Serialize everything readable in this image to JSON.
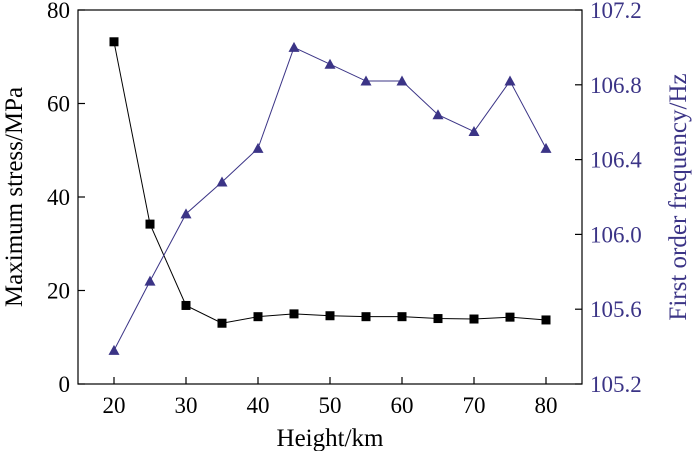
{
  "chart_data": {
    "type": "line",
    "xlabel": "Height/km",
    "x": [
      20,
      25,
      30,
      35,
      40,
      45,
      50,
      55,
      60,
      65,
      70,
      75,
      80
    ],
    "xlim": [
      15,
      85
    ],
    "xticks": [
      20,
      30,
      40,
      50,
      60,
      70,
      80
    ],
    "left_axis": {
      "label": "Maximum stress/MPa",
      "ylim": [
        0,
        80
      ],
      "ticks": [
        0,
        20,
        40,
        60,
        80
      ],
      "color": "#000000"
    },
    "right_axis": {
      "label": "First order frequency/Hz",
      "ylim": [
        105.2,
        107.2
      ],
      "ticks": [
        "105.2",
        "105.6",
        "106.0",
        "106.4",
        "106.8",
        "107.2"
      ],
      "color": "#3b3486"
    },
    "series": [
      {
        "axis": "left",
        "marker": "square",
        "color": "#000000",
        "values": [
          73.2,
          34.2,
          16.8,
          13.0,
          14.4,
          15.0,
          14.6,
          14.4,
          14.4,
          14.0,
          13.9,
          14.3,
          13.7
        ]
      },
      {
        "axis": "right",
        "marker": "triangle",
        "color": "#3b3486",
        "values": [
          105.38,
          105.75,
          106.11,
          106.28,
          106.46,
          107.0,
          106.91,
          106.82,
          106.82,
          106.64,
          106.55,
          106.82,
          106.46
        ]
      }
    ],
    "legend": "none",
    "grid": false
  }
}
